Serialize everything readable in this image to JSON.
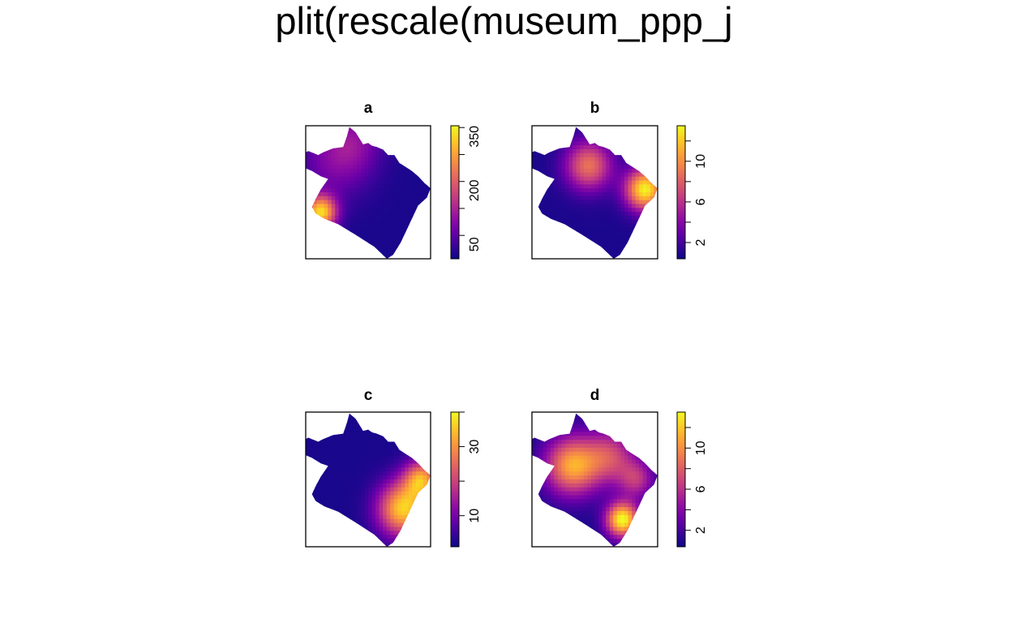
{
  "title": "plit(rescale(museum_ppp_j",
  "palette": [
    "#0d0887",
    "#3b049a",
    "#6a00a8",
    "#8f0da4",
    "#b12a90",
    "#cc4778",
    "#e16462",
    "#f2844b",
    "#fca636",
    "#fcce25",
    "#f0f921"
  ],
  "chart_data": [
    {
      "type": "heatmap",
      "title": "a",
      "legend_ticks": [
        "50",
        "200",
        "350"
      ],
      "legend_tick_values": [
        50,
        200,
        350
      ],
      "range": [
        10,
        380
      ],
      "background": 20,
      "hotspots": [
        {
          "x": 0.12,
          "y": 0.65,
          "amplitude": 330,
          "sigma": 0.09
        },
        {
          "x": 0.25,
          "y": 0.25,
          "amplitude": 90,
          "sigma": 0.2
        },
        {
          "x": 0.4,
          "y": 0.1,
          "amplitude": 60,
          "sigma": 0.15
        }
      ]
    },
    {
      "type": "heatmap",
      "title": "b",
      "legend_ticks": [
        "2",
        "6",
        "10"
      ],
      "legend_tick_values": [
        2,
        6,
        10
      ],
      "range": [
        0.4,
        13.5
      ],
      "background": 0.8,
      "hotspots": [
        {
          "x": 0.45,
          "y": 0.3,
          "amplitude": 8,
          "sigma": 0.13
        },
        {
          "x": 0.9,
          "y": 0.48,
          "amplitude": 12.5,
          "sigma": 0.11
        }
      ]
    },
    {
      "type": "heatmap",
      "title": "c",
      "legend_ticks": [
        "10",
        "30"
      ],
      "legend_tick_values": [
        10,
        30
      ],
      "range": [
        1,
        40
      ],
      "background": 2,
      "hotspots": [
        {
          "x": 0.78,
          "y": 0.72,
          "amplitude": 34,
          "sigma": 0.14
        },
        {
          "x": 0.93,
          "y": 0.5,
          "amplitude": 28,
          "sigma": 0.1
        }
      ]
    },
    {
      "type": "heatmap",
      "title": "d",
      "legend_ticks": [
        "2",
        "6",
        "10"
      ],
      "legend_tick_values": [
        2,
        6,
        10
      ],
      "range": [
        0.4,
        13.5
      ],
      "background": 0.8,
      "hotspots": [
        {
          "x": 0.32,
          "y": 0.4,
          "amplitude": 10,
          "sigma": 0.15
        },
        {
          "x": 0.62,
          "y": 0.33,
          "amplitude": 6,
          "sigma": 0.14
        },
        {
          "x": 0.83,
          "y": 0.5,
          "amplitude": 5,
          "sigma": 0.1
        },
        {
          "x": 0.72,
          "y": 0.8,
          "amplitude": 13,
          "sigma": 0.09
        }
      ]
    }
  ]
}
